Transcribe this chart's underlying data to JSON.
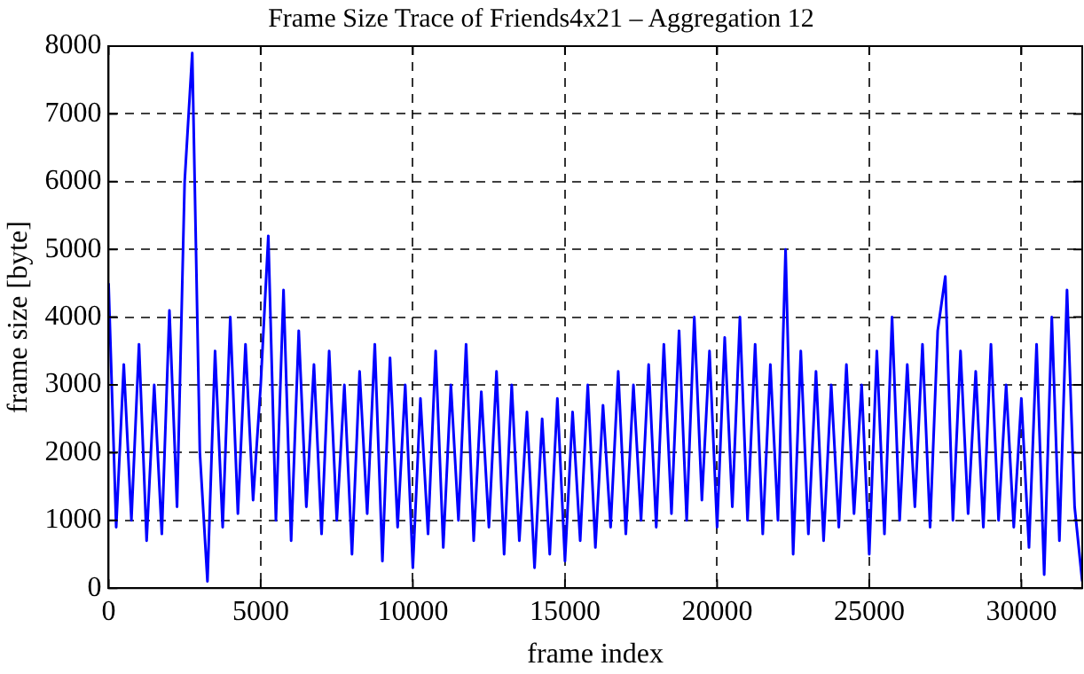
{
  "chart_data": {
    "type": "line",
    "title": "Frame Size Trace of Friends4x21 – Aggregation 12",
    "xlabel": "frame index",
    "ylabel": "frame size [byte]",
    "x": [
      0,
      250,
      500,
      750,
      1000,
      1250,
      1500,
      1750,
      2000,
      2250,
      2500,
      2750,
      3000,
      3250,
      3500,
      3750,
      4000,
      4250,
      4500,
      4750,
      5000,
      5250,
      5500,
      5750,
      6000,
      6250,
      6500,
      6750,
      7000,
      7250,
      7500,
      7750,
      8000,
      8250,
      8500,
      8750,
      9000,
      9250,
      9500,
      9750,
      10000,
      10250,
      10500,
      10750,
      11000,
      11250,
      11500,
      11750,
      12000,
      12250,
      12500,
      12750,
      13000,
      13250,
      13500,
      13750,
      14000,
      14250,
      14500,
      14750,
      15000,
      15250,
      15500,
      15750,
      16000,
      16250,
      16500,
      16750,
      17000,
      17250,
      17500,
      17750,
      18000,
      18250,
      18500,
      18750,
      19000,
      19250,
      19500,
      19750,
      20000,
      20250,
      20500,
      20750,
      21000,
      21250,
      21500,
      21750,
      22000,
      22250,
      22500,
      22750,
      23000,
      23250,
      23500,
      23750,
      24000,
      24250,
      24500,
      24750,
      25000,
      25250,
      25500,
      25750,
      26000,
      26250,
      26500,
      26750,
      27000,
      27250,
      27500,
      27750,
      28000,
      28250,
      28500,
      28750,
      29000,
      29250,
      29500,
      29750,
      30000,
      30250,
      30500,
      30750,
      31000,
      31250,
      31500,
      31750,
      32000
    ],
    "series": [
      {
        "color": "#0000ff",
        "values": [
          4500,
          900,
          3300,
          1000,
          3600,
          700,
          3000,
          800,
          4100,
          1200,
          6000,
          7900,
          2000,
          100,
          3500,
          900,
          4000,
          1100,
          3600,
          1300,
          3000,
          5200,
          1000,
          4400,
          700,
          3800,
          1200,
          3300,
          800,
          3500,
          1000,
          3000,
          500,
          3200,
          1100,
          3600,
          400,
          3400,
          900,
          3000,
          300,
          2800,
          800,
          3500,
          600,
          3000,
          1000,
          3600,
          700,
          2900,
          900,
          3200,
          500,
          3000,
          700,
          2600,
          300,
          2500,
          500,
          2800,
          400,
          2600,
          700,
          3000,
          600,
          2700,
          900,
          3200,
          800,
          3000,
          1000,
          3300,
          900,
          3600,
          1100,
          3800,
          1000,
          4000,
          1300,
          3500,
          900,
          3700,
          1200,
          4000,
          1000,
          3600,
          800,
          3300,
          1000,
          5000,
          500,
          3500,
          800,
          3200,
          700,
          3000,
          900,
          3300,
          1100,
          3000,
          500,
          3500,
          800,
          4000,
          1000,
          3300,
          1200,
          3600,
          900,
          3800,
          4600,
          1000,
          3500,
          1100,
          3200,
          900,
          3600,
          1000,
          3000,
          900,
          2800,
          600,
          3600,
          200,
          4000,
          700,
          4400,
          1200,
          100
        ]
      }
    ],
    "xlim": [
      0,
      32000
    ],
    "xticks": [
      0,
      5000,
      10000,
      15000,
      20000,
      25000,
      30000
    ],
    "ylim": [
      0,
      8000
    ],
    "yticks": [
      0,
      1000,
      2000,
      3000,
      4000,
      5000,
      6000,
      7000,
      8000
    ],
    "grid": true,
    "legend": false,
    "marker": "none",
    "line_style": "solid"
  }
}
